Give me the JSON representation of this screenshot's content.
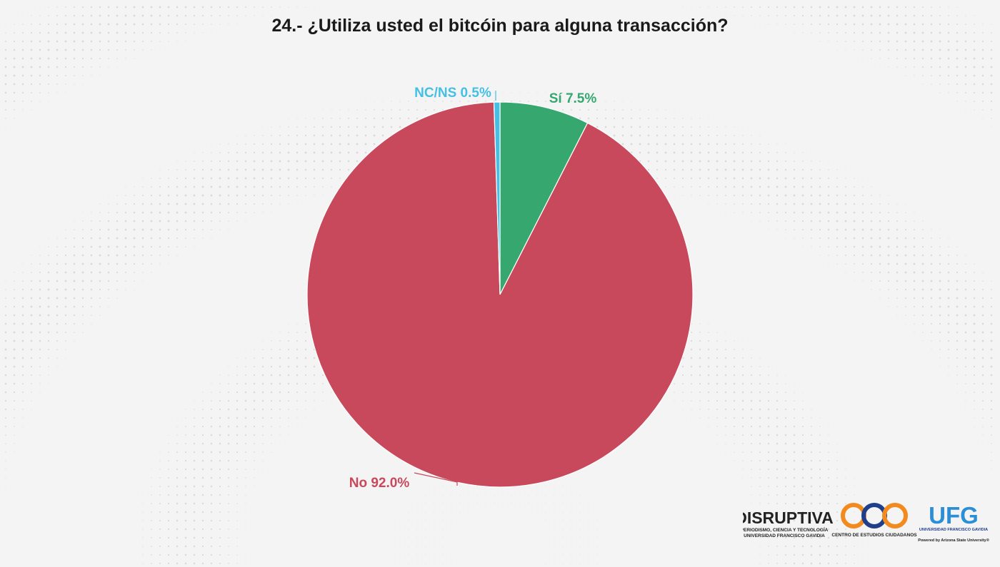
{
  "chart_data": {
    "type": "pie",
    "title": "24.- ¿Utiliza usted el bitcóin para alguna transacción?",
    "slices": [
      {
        "label": "Sí",
        "value": 7.5,
        "display": "Sí 7.5%",
        "color": "#36a86f"
      },
      {
        "label": "No",
        "value": 92.0,
        "display": "No 92.0%",
        "color": "#c8495c"
      },
      {
        "label": "NC/NS",
        "value": 0.5,
        "display": "NC/NS 0.5%",
        "color": "#45c0e4"
      }
    ],
    "start": "top",
    "direction": "clockwise"
  },
  "logos": {
    "disruptiva": {
      "name": "DISRUPTIVA",
      "line1": "PERIODISMO, CIENCIA Y TECNOLOGÍA",
      "line2": "UNIVERSIDAD FRANCISCO GAVIDIA"
    },
    "cec": {
      "name": "cec",
      "caption": "CENTRO DE ESTUDIOS CIUDADANOS"
    },
    "ufg": {
      "name": "UFG",
      "line1": "UNIVERSIDAD FRANCISCO GAVIDIA",
      "line2": "Powered by Arizona State University®"
    }
  }
}
